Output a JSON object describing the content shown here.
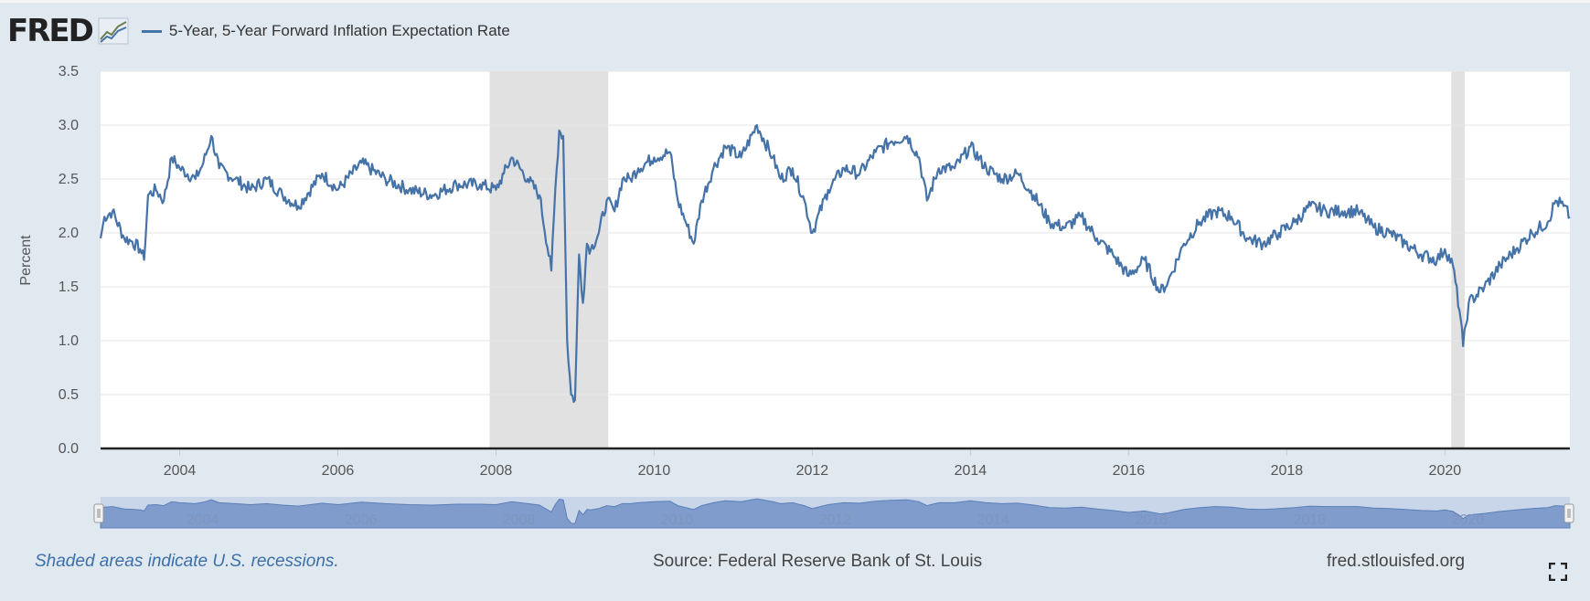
{
  "brand": {
    "logo_text": "FRED"
  },
  "legend": {
    "label": "5-Year, 5-Year Forward Inflation Expectation Rate",
    "color": "#4572a7"
  },
  "footer": {
    "note": "Shaded areas indicate U.S. recessions.",
    "source": "Source: Federal Reserve Bank of St. Louis",
    "site": "fred.stlouisfed.org"
  },
  "colors": {
    "line": "#4572a7",
    "recession": "#e1e1e1",
    "background": "#e1e9f0",
    "navigator": "#7f9ccc"
  },
  "chart_data": {
    "type": "line",
    "title": "5-Year, 5-Year Forward Inflation Expectation Rate",
    "xlabel": "",
    "ylabel": "Percent",
    "xlim": [
      2003.0,
      2021.58
    ],
    "ylim": [
      0,
      3.5
    ],
    "yticks": [
      0.0,
      0.5,
      1.0,
      1.5,
      2.0,
      2.5,
      3.0,
      3.5
    ],
    "ytick_labels": [
      "0.0",
      "0.5",
      "1.0",
      "1.5",
      "2.0",
      "2.5",
      "3.0",
      "3.5"
    ],
    "xticks": [
      2004,
      2006,
      2008,
      2010,
      2012,
      2014,
      2016,
      2018,
      2020
    ],
    "xtick_labels": [
      "2004",
      "2006",
      "2008",
      "2010",
      "2012",
      "2014",
      "2016",
      "2018",
      "2020"
    ],
    "recessions": [
      [
        2007.92,
        2009.42
      ],
      [
        2020.08,
        2020.25
      ]
    ],
    "series": [
      {
        "name": "5-Year, 5-Year Forward Inflation Expectation Rate",
        "x": [
          2003.0,
          2003.05,
          2003.15,
          2003.3,
          2003.4,
          2003.5,
          2003.55,
          2003.6,
          2003.7,
          2003.8,
          2003.9,
          2004.0,
          2004.2,
          2004.3,
          2004.4,
          2004.5,
          2004.7,
          2004.9,
          2005.1,
          2005.3,
          2005.5,
          2005.8,
          2006.0,
          2006.3,
          2006.6,
          2006.9,
          2007.2,
          2007.5,
          2007.8,
          2008.0,
          2008.1,
          2008.2,
          2008.4,
          2008.55,
          2008.7,
          2008.75,
          2008.8,
          2008.85,
          2008.9,
          2008.95,
          2009.0,
          2009.05,
          2009.1,
          2009.15,
          2009.2,
          2009.3,
          2009.4,
          2009.5,
          2009.6,
          2009.7,
          2009.8,
          2010.0,
          2010.2,
          2010.3,
          2010.4,
          2010.5,
          2010.6,
          2010.75,
          2010.9,
          2011.1,
          2011.3,
          2011.5,
          2011.6,
          2011.75,
          2011.9,
          2012.0,
          2012.2,
          2012.4,
          2012.6,
          2012.8,
          2013.0,
          2013.2,
          2013.35,
          2013.45,
          2013.6,
          2013.8,
          2014.0,
          2014.2,
          2014.4,
          2014.6,
          2014.8,
          2015.0,
          2015.2,
          2015.4,
          2015.6,
          2015.8,
          2016.0,
          2016.2,
          2016.4,
          2016.5,
          2016.7,
          2016.9,
          2017.1,
          2017.3,
          2017.5,
          2017.7,
          2017.9,
          2018.1,
          2018.3,
          2018.5,
          2018.7,
          2018.9,
          2019.1,
          2019.3,
          2019.5,
          2019.7,
          2019.9,
          2020.0,
          2020.1,
          2020.2,
          2020.23,
          2020.3,
          2020.5,
          2020.7,
          2020.9,
          2021.1,
          2021.3,
          2021.4,
          2021.5,
          2021.58
        ],
        "values": [
          1.95,
          2.15,
          2.2,
          1.95,
          1.92,
          1.85,
          1.75,
          2.35,
          2.4,
          2.3,
          2.7,
          2.6,
          2.5,
          2.65,
          2.9,
          2.6,
          2.5,
          2.4,
          2.5,
          2.35,
          2.25,
          2.55,
          2.4,
          2.65,
          2.5,
          2.4,
          2.35,
          2.45,
          2.45,
          2.4,
          2.55,
          2.7,
          2.5,
          2.35,
          1.65,
          2.4,
          2.95,
          2.9,
          1.0,
          0.5,
          0.45,
          1.8,
          1.35,
          1.9,
          1.85,
          2.0,
          2.3,
          2.2,
          2.5,
          2.5,
          2.6,
          2.7,
          2.75,
          2.3,
          2.1,
          1.9,
          2.3,
          2.6,
          2.8,
          2.7,
          3.0,
          2.7,
          2.5,
          2.6,
          2.3,
          2.0,
          2.4,
          2.6,
          2.55,
          2.75,
          2.85,
          2.9,
          2.7,
          2.3,
          2.6,
          2.6,
          2.8,
          2.6,
          2.5,
          2.55,
          2.35,
          2.1,
          2.05,
          2.15,
          1.95,
          1.8,
          1.6,
          1.75,
          1.45,
          1.55,
          1.9,
          2.1,
          2.2,
          2.15,
          1.95,
          1.9,
          2.0,
          2.1,
          2.25,
          2.2,
          2.2,
          2.2,
          2.05,
          2.0,
          1.9,
          1.8,
          1.75,
          1.85,
          1.7,
          1.2,
          0.95,
          1.35,
          1.5,
          1.7,
          1.85,
          2.0,
          2.1,
          2.3,
          2.25,
          2.15
        ]
      }
    ]
  }
}
